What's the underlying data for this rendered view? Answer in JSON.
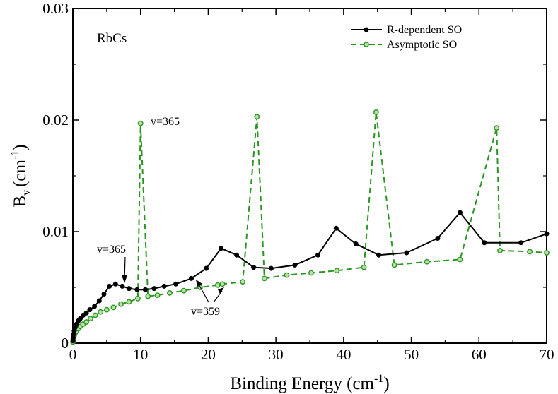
{
  "chart_data": {
    "type": "line",
    "title": "",
    "panel_label": "RbCs",
    "xlabel": "Binding Energy (cm",
    "xlabel_sup": "-1",
    "xlabel_end": ")",
    "ylabel_main": "B",
    "ylabel_sub": "v",
    "ylabel_unit": "(cm",
    "ylabel_sup": "-1",
    "ylabel_end": ")",
    "xlim": [
      0,
      70
    ],
    "ylim": [
      0,
      0.03
    ],
    "xticks": [
      0,
      10,
      20,
      30,
      40,
      50,
      60,
      70
    ],
    "xtick_labels": [
      "0",
      "10",
      "20",
      "30",
      "40",
      "50",
      "60",
      "70"
    ],
    "yticks": [
      0,
      0.01,
      0.02,
      0.03
    ],
    "ytick_labels": [
      "0",
      "0.01",
      "0.02",
      "0.03"
    ],
    "legend_position": "top-right",
    "colors": {
      "r_dependent": "#000000",
      "asymptotic": "#2a9620"
    },
    "series": [
      {
        "name": "R-dependent SO",
        "style": "solid",
        "color": "#000000",
        "x": [
          0.02,
          0.05,
          0.1,
          0.2,
          0.35,
          0.55,
          0.8,
          1.1,
          1.5,
          2.0,
          2.5,
          3.2,
          3.9,
          4.6,
          5.4,
          6.3,
          7.3,
          8.3,
          9.5,
          10.7,
          12.0,
          13.5,
          15.2,
          17.5,
          19.7,
          21.9,
          24.2,
          26.7,
          29.3,
          32.8,
          36.2,
          38.9,
          41.8,
          45.2,
          49.3,
          53.9,
          57.2,
          60.8,
          66.2,
          70.0
        ],
        "y": [
          0.0002,
          0.0005,
          0.0008,
          0.0011,
          0.0014,
          0.0017,
          0.002,
          0.0022,
          0.0025,
          0.0027,
          0.003,
          0.0033,
          0.0038,
          0.0044,
          0.0051,
          0.0053,
          0.0051,
          0.0049,
          0.0048,
          0.0048,
          0.0049,
          0.0051,
          0.0053,
          0.0058,
          0.0067,
          0.0085,
          0.0079,
          0.0068,
          0.0067,
          0.007,
          0.0079,
          0.0103,
          0.0089,
          0.0079,
          0.0081,
          0.0094,
          0.0117,
          0.009,
          0.009,
          0.0098
        ]
      },
      {
        "name": "Asymptotic SO",
        "style": "dashed",
        "color": "#2a9620",
        "x": [
          0.02,
          0.05,
          0.1,
          0.2,
          0.35,
          0.55,
          0.8,
          1.1,
          1.5,
          2.0,
          2.6,
          3.3,
          4.1,
          5.0,
          6.0,
          7.1,
          8.3,
          9.6,
          10.0,
          11.1,
          12.5,
          14.3,
          16.4,
          18.8,
          21.4,
          22.1,
          25.1,
          27.2,
          28.3,
          31.6,
          35.2,
          39.0,
          43.0,
          44.8,
          47.5,
          52.3,
          57.2,
          62.6,
          63.1,
          67.5,
          70.0
        ],
        "y": [
          0.0001,
          0.0003,
          0.0005,
          0.0007,
          0.0009,
          0.0011,
          0.0013,
          0.0015,
          0.0017,
          0.0019,
          0.0022,
          0.0025,
          0.0028,
          0.003,
          0.0032,
          0.0035,
          0.0037,
          0.004,
          0.0197,
          0.0042,
          0.0043,
          0.0045,
          0.0047,
          0.005,
          0.0052,
          0.0053,
          0.0055,
          0.0203,
          0.0058,
          0.0061,
          0.0063,
          0.0065,
          0.0068,
          0.0207,
          0.007,
          0.0073,
          0.0075,
          0.0193,
          0.0083,
          0.0082,
          0.0081
        ]
      }
    ],
    "annotations": [
      {
        "id": "v365-black",
        "text": "v=365"
      },
      {
        "id": "v365-green",
        "text": "v=365"
      },
      {
        "id": "v359",
        "text": "v=359"
      }
    ]
  }
}
